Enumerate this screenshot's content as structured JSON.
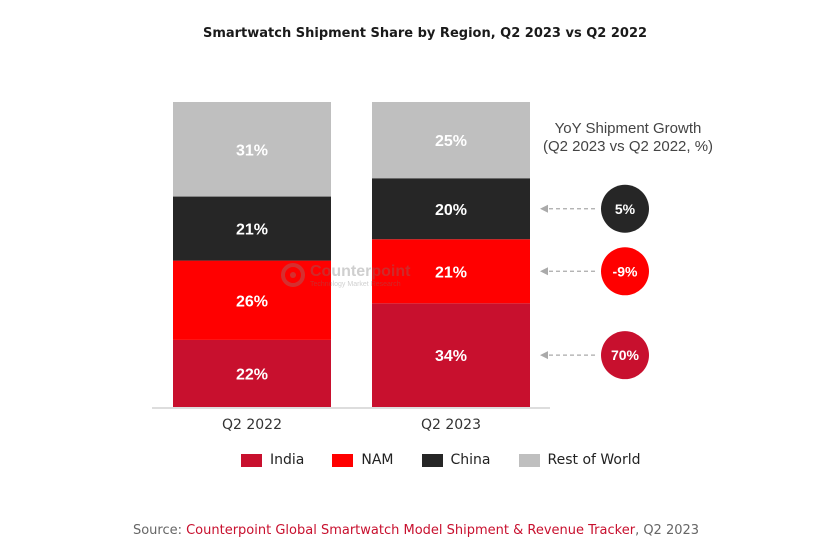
{
  "chart_data": {
    "type": "bar",
    "stacked": true,
    "title": "Smartwatch Shipment Share by Region, Q2 2023 vs Q2 2022",
    "categories": [
      "Q2 2022",
      "Q2 2023"
    ],
    "series": [
      {
        "name": "India",
        "color": "#c8102e",
        "values": [
          22,
          34
        ],
        "labels": [
          "22%",
          "34%"
        ]
      },
      {
        "name": "NAM",
        "color": "#ff0000",
        "values": [
          26,
          21
        ],
        "labels": [
          "26%",
          "21%"
        ]
      },
      {
        "name": "China",
        "color": "#262626",
        "values": [
          21,
          20
        ],
        "labels": [
          "21%",
          "20%"
        ]
      },
      {
        "name": "Rest of World",
        "color": "#bfbfbf",
        "values": [
          31,
          25
        ],
        "labels": [
          "31%",
          "25%"
        ]
      }
    ],
    "ylim": [
      0,
      100
    ],
    "grid": false,
    "legend_position": "bottom",
    "growth": {
      "title_line1": "YoY Shipment Growth",
      "title_line2": "(Q2 2023 vs Q2 2022, %)",
      "items": [
        {
          "series": "China",
          "label": "5%",
          "color": "#262626"
        },
        {
          "series": "NAM",
          "label": "-9%",
          "color": "#ff0000"
        },
        {
          "series": "India",
          "label": "70%",
          "color": "#c8102e"
        }
      ]
    }
  },
  "watermark": {
    "name": "Counterpoint",
    "sub": "Technology Market Research"
  },
  "source": {
    "prefix": "Source: ",
    "link": "Counterpoint Global Smartwatch Model Shipment & Revenue Tracker",
    "suffix": ", Q2 2023"
  }
}
